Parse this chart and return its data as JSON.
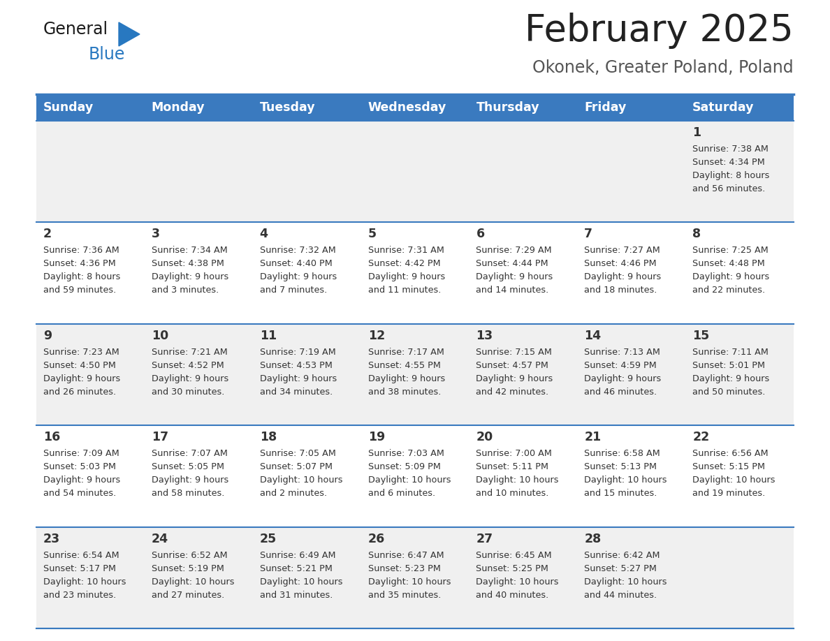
{
  "title": "February 2025",
  "subtitle": "Okonek, Greater Poland, Poland",
  "header_bg": "#3a7abf",
  "header_text": "#ffffff",
  "cell_bg_odd": "#f0f0f0",
  "cell_bg_even": "#ffffff",
  "title_color": "#222222",
  "subtitle_color": "#555555",
  "day_num_color": "#333333",
  "info_text_color": "#333333",
  "border_color": "#3a7abf",
  "days_of_week": [
    "Sunday",
    "Monday",
    "Tuesday",
    "Wednesday",
    "Thursday",
    "Friday",
    "Saturday"
  ],
  "calendar": [
    [
      {
        "day": null,
        "sunrise": null,
        "sunset": null,
        "daylight": null
      },
      {
        "day": null,
        "sunrise": null,
        "sunset": null,
        "daylight": null
      },
      {
        "day": null,
        "sunrise": null,
        "sunset": null,
        "daylight": null
      },
      {
        "day": null,
        "sunrise": null,
        "sunset": null,
        "daylight": null
      },
      {
        "day": null,
        "sunrise": null,
        "sunset": null,
        "daylight": null
      },
      {
        "day": null,
        "sunrise": null,
        "sunset": null,
        "daylight": null
      },
      {
        "day": 1,
        "sunrise": "7:38 AM",
        "sunset": "4:34 PM",
        "daylight": "8 hours\nand 56 minutes."
      }
    ],
    [
      {
        "day": 2,
        "sunrise": "7:36 AM",
        "sunset": "4:36 PM",
        "daylight": "8 hours\nand 59 minutes."
      },
      {
        "day": 3,
        "sunrise": "7:34 AM",
        "sunset": "4:38 PM",
        "daylight": "9 hours\nand 3 minutes."
      },
      {
        "day": 4,
        "sunrise": "7:32 AM",
        "sunset": "4:40 PM",
        "daylight": "9 hours\nand 7 minutes."
      },
      {
        "day": 5,
        "sunrise": "7:31 AM",
        "sunset": "4:42 PM",
        "daylight": "9 hours\nand 11 minutes."
      },
      {
        "day": 6,
        "sunrise": "7:29 AM",
        "sunset": "4:44 PM",
        "daylight": "9 hours\nand 14 minutes."
      },
      {
        "day": 7,
        "sunrise": "7:27 AM",
        "sunset": "4:46 PM",
        "daylight": "9 hours\nand 18 minutes."
      },
      {
        "day": 8,
        "sunrise": "7:25 AM",
        "sunset": "4:48 PM",
        "daylight": "9 hours\nand 22 minutes."
      }
    ],
    [
      {
        "day": 9,
        "sunrise": "7:23 AM",
        "sunset": "4:50 PM",
        "daylight": "9 hours\nand 26 minutes."
      },
      {
        "day": 10,
        "sunrise": "7:21 AM",
        "sunset": "4:52 PM",
        "daylight": "9 hours\nand 30 minutes."
      },
      {
        "day": 11,
        "sunrise": "7:19 AM",
        "sunset": "4:53 PM",
        "daylight": "9 hours\nand 34 minutes."
      },
      {
        "day": 12,
        "sunrise": "7:17 AM",
        "sunset": "4:55 PM",
        "daylight": "9 hours\nand 38 minutes."
      },
      {
        "day": 13,
        "sunrise": "7:15 AM",
        "sunset": "4:57 PM",
        "daylight": "9 hours\nand 42 minutes."
      },
      {
        "day": 14,
        "sunrise": "7:13 AM",
        "sunset": "4:59 PM",
        "daylight": "9 hours\nand 46 minutes."
      },
      {
        "day": 15,
        "sunrise": "7:11 AM",
        "sunset": "5:01 PM",
        "daylight": "9 hours\nand 50 minutes."
      }
    ],
    [
      {
        "day": 16,
        "sunrise": "7:09 AM",
        "sunset": "5:03 PM",
        "daylight": "9 hours\nand 54 minutes."
      },
      {
        "day": 17,
        "sunrise": "7:07 AM",
        "sunset": "5:05 PM",
        "daylight": "9 hours\nand 58 minutes."
      },
      {
        "day": 18,
        "sunrise": "7:05 AM",
        "sunset": "5:07 PM",
        "daylight": "10 hours\nand 2 minutes."
      },
      {
        "day": 19,
        "sunrise": "7:03 AM",
        "sunset": "5:09 PM",
        "daylight": "10 hours\nand 6 minutes."
      },
      {
        "day": 20,
        "sunrise": "7:00 AM",
        "sunset": "5:11 PM",
        "daylight": "10 hours\nand 10 minutes."
      },
      {
        "day": 21,
        "sunrise": "6:58 AM",
        "sunset": "5:13 PM",
        "daylight": "10 hours\nand 15 minutes."
      },
      {
        "day": 22,
        "sunrise": "6:56 AM",
        "sunset": "5:15 PM",
        "daylight": "10 hours\nand 19 minutes."
      }
    ],
    [
      {
        "day": 23,
        "sunrise": "6:54 AM",
        "sunset": "5:17 PM",
        "daylight": "10 hours\nand 23 minutes."
      },
      {
        "day": 24,
        "sunrise": "6:52 AM",
        "sunset": "5:19 PM",
        "daylight": "10 hours\nand 27 minutes."
      },
      {
        "day": 25,
        "sunrise": "6:49 AM",
        "sunset": "5:21 PM",
        "daylight": "10 hours\nand 31 minutes."
      },
      {
        "day": 26,
        "sunrise": "6:47 AM",
        "sunset": "5:23 PM",
        "daylight": "10 hours\nand 35 minutes."
      },
      {
        "day": 27,
        "sunrise": "6:45 AM",
        "sunset": "5:25 PM",
        "daylight": "10 hours\nand 40 minutes."
      },
      {
        "day": 28,
        "sunrise": "6:42 AM",
        "sunset": "5:27 PM",
        "daylight": "10 hours\nand 44 minutes."
      },
      {
        "day": null,
        "sunrise": null,
        "sunset": null,
        "daylight": null
      }
    ]
  ]
}
